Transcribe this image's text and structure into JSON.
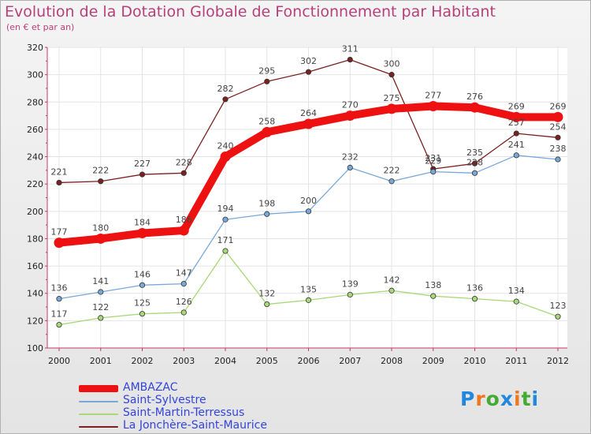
{
  "chart_data": {
    "type": "line",
    "title": "Evolution de la Dotation Globale de Fonctionnement par Habitant",
    "subtitle": "(en € et par an)",
    "xlabel": "",
    "ylabel": "",
    "ylim": [
      100,
      320
    ],
    "yticks": [
      100,
      120,
      140,
      160,
      180,
      200,
      220,
      240,
      260,
      280,
      300,
      320
    ],
    "grid": true,
    "legend_position": "bottom-left",
    "categories": [
      "2000",
      "2001",
      "2002",
      "2003",
      "2004",
      "2005",
      "2006",
      "2007",
      "2008",
      "2009",
      "2010",
      "2011",
      "2012"
    ],
    "series": [
      {
        "name": "La Jonchère-Saint-Maurice",
        "color": "#7a2020",
        "values": [
          221,
          222,
          227,
          228,
          282,
          295,
          302,
          311,
          300,
          231,
          235,
          257,
          254
        ]
      },
      {
        "name": "Saint-Martin-Terressus",
        "color": "#a8d878",
        "values": [
          117,
          122,
          125,
          126,
          171,
          132,
          135,
          139,
          142,
          138,
          136,
          134,
          123
        ]
      },
      {
        "name": "Saint-Sylvestre",
        "color": "#78a8d8",
        "values": [
          136,
          141,
          146,
          147,
          194,
          198,
          200,
          232,
          222,
          229,
          228,
          241,
          238
        ]
      },
      {
        "name": "AMBAZAC",
        "color": "#ee1111",
        "values": [
          177,
          180,
          184,
          186,
          240,
          258,
          264,
          270,
          275,
          277,
          276,
          269,
          269
        ]
      }
    ],
    "legend": [
      "AMBAZAC",
      "Saint-Sylvestre",
      "Saint-Martin-Terressus",
      "La Jonchère-Saint-Maurice"
    ]
  },
  "logo": {
    "letters": [
      "P",
      "r",
      "o",
      "x",
      "i",
      "t",
      "i"
    ],
    "colors": [
      "#2288dd",
      "#ee7722",
      "#44aa33",
      "#2288dd",
      "#ee7722",
      "#44aa33",
      "#2288dd"
    ]
  }
}
